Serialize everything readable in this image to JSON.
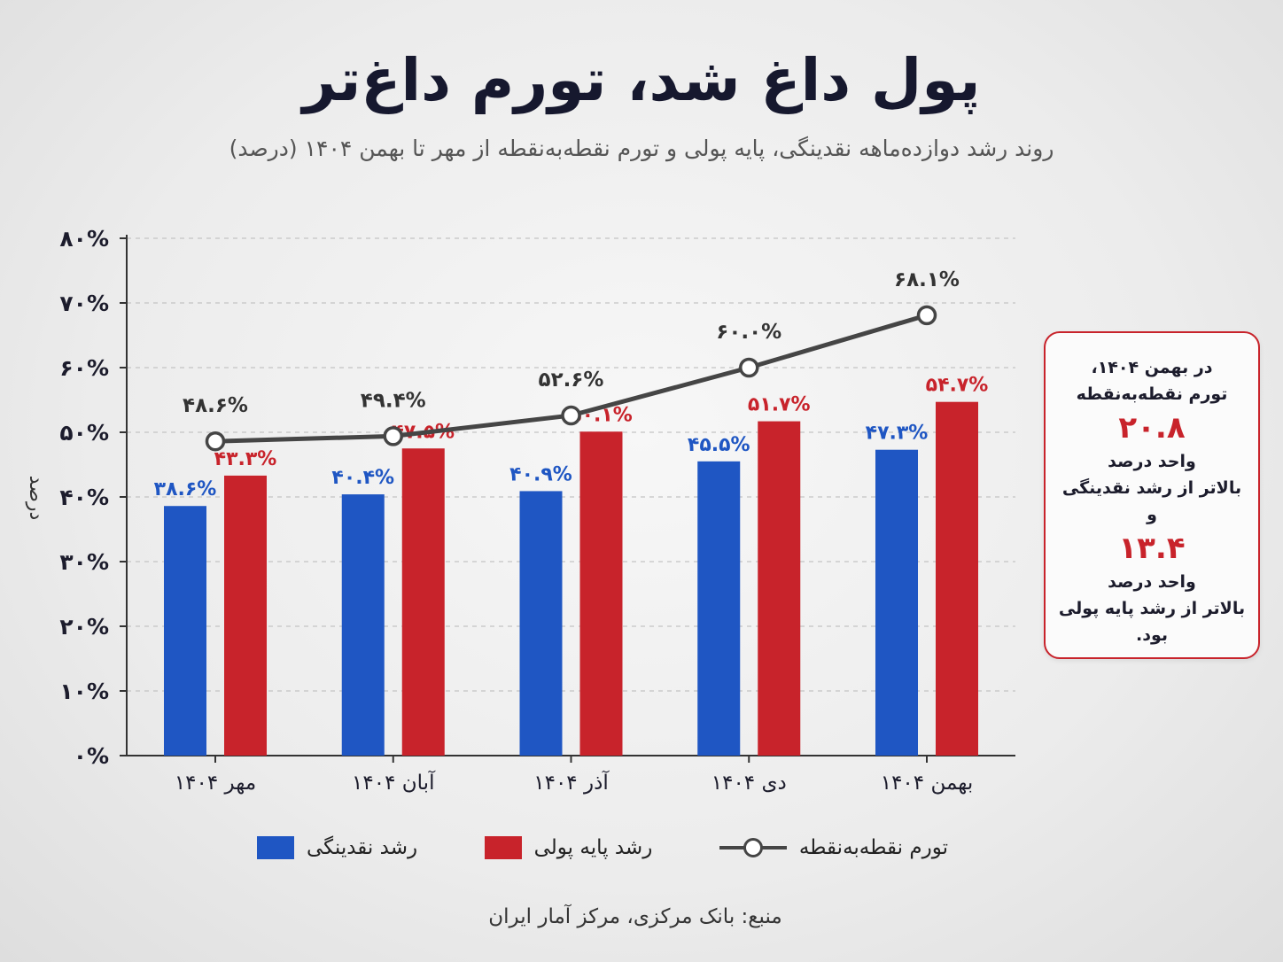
{
  "title": "پول داغ شد، تورم داغ‌تر",
  "subtitle": "روند رشد دوازده‌ماهه نقدینگی، پایه پولی و تورم نقطه‌به‌نقطه از مهر تا بهمن ۱۴۰۴ (درصد)",
  "chart_data": {
    "type": "bar",
    "categories": [
      "مهر ۱۴۰۴",
      "آبان ۱۴۰۴",
      "آذر ۱۴۰۴",
      "دی ۱۴۰۴",
      "بهمن ۱۴۰۴"
    ],
    "ylabel": "درصد",
    "ylim": [
      0,
      80
    ],
    "yticks": [
      0,
      10,
      20,
      30,
      40,
      50,
      60,
      70,
      80
    ],
    "ytick_labels": [
      "۰%",
      "۱۰%",
      "۲۰%",
      "۳۰%",
      "۴۰%",
      "۵۰%",
      "۶۰%",
      "۷۰%",
      "۸۰%"
    ],
    "grid": true,
    "legend_position": "bottom",
    "series": [
      {
        "name": "رشد نقدینگی",
        "type": "bar",
        "color": "#1f56c3",
        "values": [
          38.6,
          40.4,
          40.9,
          45.5,
          47.3
        ],
        "labels": [
          "۳۸.۶%",
          "۴۰.۴%",
          "۴۰.۹%",
          "۴۵.۵%",
          "۴۷.۳%"
        ]
      },
      {
        "name": "رشد پایه پولی",
        "type": "bar",
        "color": "#c8232b",
        "values": [
          43.3,
          47.5,
          50.1,
          51.7,
          54.7
        ],
        "labels": [
          "۴۳.۳%",
          "۴۷.۵%",
          "۵۰.۱%",
          "۵۱.۷%",
          "۵۴.۷%"
        ]
      },
      {
        "name": "تورم نقطه‌به‌نقطه",
        "type": "line",
        "color": "#454545",
        "values": [
          48.6,
          49.4,
          52.6,
          60.0,
          68.1
        ],
        "labels": [
          "۴۸.۶%",
          "۴۹.۴%",
          "۵۲.۶%",
          "۶۰.۰%",
          "۶۸.۱%"
        ]
      }
    ]
  },
  "callout": {
    "line1": "در بهمن ۱۴۰۴،",
    "line2": "تورم نقطه‌به‌نقطه",
    "value1": "۲۰.۸",
    "line3": "واحد درصد",
    "line4": "بالاتر از رشد نقدینگی",
    "conj": "و",
    "value2": "۱۳.۴",
    "line5": "واحد درصد",
    "line6": "بالاتر از رشد پایه پولی بود."
  },
  "source": "منبع: بانک مرکزی، مرکز آمار ایران"
}
